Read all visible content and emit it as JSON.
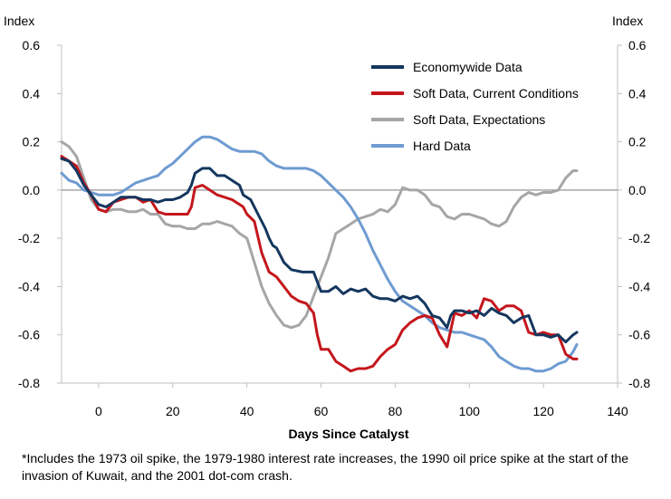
{
  "chart_data": {
    "type": "line",
    "title": "",
    "xlabel": "Days Since Catalyst",
    "ylabel_left": "Index",
    "ylabel_right": "Index",
    "xlim": [
      -10,
      140
    ],
    "ylim": [
      -0.8,
      0.6
    ],
    "x_ticks": [
      0,
      20,
      40,
      60,
      80,
      100,
      120,
      140
    ],
    "y_ticks": [
      0.6,
      0.4,
      0.2,
      0.0,
      -0.2,
      -0.4,
      -0.6,
      -0.8
    ],
    "y_tick_labels": [
      "0.6",
      "0.4",
      "0.2",
      "0.0",
      "-0.2",
      "-0.4",
      "-0.6",
      "-0.8"
    ],
    "zero_line": true,
    "grid": false,
    "legend_position": "top-right",
    "series": [
      {
        "name": "Economywide Data",
        "color": "#14375e",
        "points": [
          [
            -10,
            0.13
          ],
          [
            -8,
            0.12
          ],
          [
            -6,
            0.08
          ],
          [
            -4,
            0.02
          ],
          [
            -2,
            -0.02
          ],
          [
            0,
            -0.06
          ],
          [
            2,
            -0.07
          ],
          [
            4,
            -0.05
          ],
          [
            6,
            -0.03
          ],
          [
            8,
            -0.03
          ],
          [
            10,
            -0.03
          ],
          [
            12,
            -0.04
          ],
          [
            14,
            -0.04
          ],
          [
            16,
            -0.05
          ],
          [
            18,
            -0.04
          ],
          [
            20,
            -0.04
          ],
          [
            22,
            -0.03
          ],
          [
            24,
            -0.01
          ],
          [
            25,
            0.02
          ],
          [
            26,
            0.07
          ],
          [
            28,
            0.09
          ],
          [
            30,
            0.09
          ],
          [
            32,
            0.06
          ],
          [
            34,
            0.06
          ],
          [
            36,
            0.04
          ],
          [
            38,
            0.02
          ],
          [
            39,
            -0.02
          ],
          [
            41,
            -0.04
          ],
          [
            43,
            -0.1
          ],
          [
            45,
            -0.16
          ],
          [
            46,
            -0.2
          ],
          [
            47,
            -0.23
          ],
          [
            48,
            -0.24
          ],
          [
            50,
            -0.3
          ],
          [
            52,
            -0.33
          ],
          [
            55,
            -0.34
          ],
          [
            58,
            -0.34
          ],
          [
            59,
            -0.38
          ],
          [
            60,
            -0.42
          ],
          [
            62,
            -0.42
          ],
          [
            64,
            -0.4
          ],
          [
            66,
            -0.43
          ],
          [
            68,
            -0.41
          ],
          [
            70,
            -0.42
          ],
          [
            72,
            -0.41
          ],
          [
            74,
            -0.44
          ],
          [
            76,
            -0.45
          ],
          [
            78,
            -0.45
          ],
          [
            80,
            -0.46
          ],
          [
            82,
            -0.44
          ],
          [
            84,
            -0.45
          ],
          [
            86,
            -0.44
          ],
          [
            88,
            -0.47
          ],
          [
            90,
            -0.52
          ],
          [
            92,
            -0.53
          ],
          [
            94,
            -0.57
          ],
          [
            95,
            -0.52
          ],
          [
            96,
            -0.5
          ],
          [
            98,
            -0.5
          ],
          [
            100,
            -0.51
          ],
          [
            102,
            -0.5
          ],
          [
            104,
            -0.52
          ],
          [
            106,
            -0.49
          ],
          [
            108,
            -0.51
          ],
          [
            110,
            -0.52
          ],
          [
            112,
            -0.55
          ],
          [
            114,
            -0.53
          ],
          [
            116,
            -0.52
          ],
          [
            118,
            -0.6
          ],
          [
            120,
            -0.6
          ],
          [
            122,
            -0.61
          ],
          [
            124,
            -0.6
          ],
          [
            126,
            -0.63
          ],
          [
            128,
            -0.6
          ],
          [
            129,
            -0.59
          ]
        ]
      },
      {
        "name": "Soft Data, Current Conditions",
        "color": "#c4161c",
        "points": [
          [
            -10,
            0.14
          ],
          [
            -8,
            0.12
          ],
          [
            -6,
            0.1
          ],
          [
            -4,
            0.03
          ],
          [
            -2,
            -0.02
          ],
          [
            0,
            -0.08
          ],
          [
            2,
            -0.09
          ],
          [
            4,
            -0.05
          ],
          [
            6,
            -0.04
          ],
          [
            8,
            -0.03
          ],
          [
            10,
            -0.03
          ],
          [
            12,
            -0.05
          ],
          [
            14,
            -0.04
          ],
          [
            16,
            -0.09
          ],
          [
            18,
            -0.1
          ],
          [
            20,
            -0.1
          ],
          [
            22,
            -0.1
          ],
          [
            24,
            -0.1
          ],
          [
            25,
            -0.07
          ],
          [
            26,
            0.01
          ],
          [
            28,
            0.02
          ],
          [
            30,
            0.0
          ],
          [
            32,
            -0.02
          ],
          [
            34,
            -0.03
          ],
          [
            36,
            -0.04
          ],
          [
            38,
            -0.06
          ],
          [
            39,
            -0.07
          ],
          [
            40,
            -0.1
          ],
          [
            42,
            -0.13
          ],
          [
            44,
            -0.26
          ],
          [
            46,
            -0.34
          ],
          [
            48,
            -0.36
          ],
          [
            50,
            -0.4
          ],
          [
            52,
            -0.44
          ],
          [
            54,
            -0.46
          ],
          [
            56,
            -0.47
          ],
          [
            58,
            -0.51
          ],
          [
            59,
            -0.6
          ],
          [
            60,
            -0.66
          ],
          [
            62,
            -0.66
          ],
          [
            64,
            -0.71
          ],
          [
            66,
            -0.73
          ],
          [
            68,
            -0.75
          ],
          [
            70,
            -0.74
          ],
          [
            72,
            -0.74
          ],
          [
            74,
            -0.73
          ],
          [
            76,
            -0.69
          ],
          [
            78,
            -0.66
          ],
          [
            80,
            -0.64
          ],
          [
            82,
            -0.58
          ],
          [
            84,
            -0.55
          ],
          [
            86,
            -0.53
          ],
          [
            88,
            -0.52
          ],
          [
            90,
            -0.53
          ],
          [
            92,
            -0.6
          ],
          [
            94,
            -0.65
          ],
          [
            96,
            -0.51
          ],
          [
            98,
            -0.52
          ],
          [
            100,
            -0.5
          ],
          [
            102,
            -0.53
          ],
          [
            104,
            -0.45
          ],
          [
            106,
            -0.46
          ],
          [
            108,
            -0.5
          ],
          [
            110,
            -0.48
          ],
          [
            112,
            -0.48
          ],
          [
            114,
            -0.5
          ],
          [
            116,
            -0.59
          ],
          [
            118,
            -0.6
          ],
          [
            120,
            -0.59
          ],
          [
            122,
            -0.6
          ],
          [
            124,
            -0.6
          ],
          [
            126,
            -0.68
          ],
          [
            128,
            -0.7
          ],
          [
            129,
            -0.7
          ]
        ]
      },
      {
        "name": "Soft Data, Expectations",
        "color": "#a6a6a6",
        "points": [
          [
            -10,
            0.2
          ],
          [
            -8,
            0.18
          ],
          [
            -6,
            0.14
          ],
          [
            -4,
            0.05
          ],
          [
            -2,
            -0.04
          ],
          [
            0,
            -0.08
          ],
          [
            2,
            -0.09
          ],
          [
            4,
            -0.08
          ],
          [
            6,
            -0.08
          ],
          [
            8,
            -0.09
          ],
          [
            10,
            -0.09
          ],
          [
            12,
            -0.08
          ],
          [
            14,
            -0.1
          ],
          [
            16,
            -0.1
          ],
          [
            18,
            -0.14
          ],
          [
            20,
            -0.15
          ],
          [
            22,
            -0.15
          ],
          [
            24,
            -0.16
          ],
          [
            26,
            -0.16
          ],
          [
            28,
            -0.14
          ],
          [
            30,
            -0.14
          ],
          [
            32,
            -0.13
          ],
          [
            34,
            -0.14
          ],
          [
            36,
            -0.15
          ],
          [
            38,
            -0.18
          ],
          [
            40,
            -0.2
          ],
          [
            42,
            -0.3
          ],
          [
            44,
            -0.4
          ],
          [
            46,
            -0.47
          ],
          [
            48,
            -0.52
          ],
          [
            50,
            -0.56
          ],
          [
            52,
            -0.57
          ],
          [
            54,
            -0.56
          ],
          [
            56,
            -0.52
          ],
          [
            58,
            -0.44
          ],
          [
            60,
            -0.36
          ],
          [
            62,
            -0.28
          ],
          [
            64,
            -0.18
          ],
          [
            66,
            -0.16
          ],
          [
            68,
            -0.14
          ],
          [
            70,
            -0.12
          ],
          [
            72,
            -0.11
          ],
          [
            74,
            -0.1
          ],
          [
            76,
            -0.08
          ],
          [
            78,
            -0.09
          ],
          [
            80,
            -0.06
          ],
          [
            82,
            0.01
          ],
          [
            84,
            0.0
          ],
          [
            86,
            0.0
          ],
          [
            88,
            -0.02
          ],
          [
            90,
            -0.06
          ],
          [
            92,
            -0.07
          ],
          [
            94,
            -0.11
          ],
          [
            96,
            -0.12
          ],
          [
            98,
            -0.1
          ],
          [
            100,
            -0.1
          ],
          [
            102,
            -0.11
          ],
          [
            104,
            -0.12
          ],
          [
            106,
            -0.14
          ],
          [
            108,
            -0.15
          ],
          [
            110,
            -0.13
          ],
          [
            112,
            -0.07
          ],
          [
            114,
            -0.03
          ],
          [
            116,
            -0.01
          ],
          [
            118,
            -0.02
          ],
          [
            120,
            -0.01
          ],
          [
            122,
            -0.01
          ],
          [
            124,
            0.0
          ],
          [
            126,
            0.05
          ],
          [
            128,
            0.08
          ],
          [
            129,
            0.08
          ]
        ]
      },
      {
        "name": "Hard Data",
        "color": "#6e9bd1",
        "points": [
          [
            -10,
            0.07
          ],
          [
            -8,
            0.04
          ],
          [
            -6,
            0.03
          ],
          [
            -4,
            0.0
          ],
          [
            -2,
            -0.01
          ],
          [
            0,
            -0.02
          ],
          [
            2,
            -0.02
          ],
          [
            4,
            -0.02
          ],
          [
            6,
            -0.01
          ],
          [
            8,
            0.01
          ],
          [
            10,
            0.03
          ],
          [
            12,
            0.04
          ],
          [
            14,
            0.05
          ],
          [
            16,
            0.06
          ],
          [
            18,
            0.09
          ],
          [
            20,
            0.11
          ],
          [
            22,
            0.14
          ],
          [
            24,
            0.17
          ],
          [
            26,
            0.2
          ],
          [
            28,
            0.22
          ],
          [
            30,
            0.22
          ],
          [
            32,
            0.21
          ],
          [
            34,
            0.19
          ],
          [
            36,
            0.17
          ],
          [
            38,
            0.16
          ],
          [
            40,
            0.16
          ],
          [
            42,
            0.16
          ],
          [
            44,
            0.15
          ],
          [
            46,
            0.12
          ],
          [
            48,
            0.1
          ],
          [
            50,
            0.09
          ],
          [
            52,
            0.09
          ],
          [
            54,
            0.09
          ],
          [
            56,
            0.09
          ],
          [
            58,
            0.08
          ],
          [
            60,
            0.06
          ],
          [
            62,
            0.03
          ],
          [
            64,
            0.0
          ],
          [
            66,
            -0.03
          ],
          [
            68,
            -0.07
          ],
          [
            70,
            -0.12
          ],
          [
            72,
            -0.18
          ],
          [
            74,
            -0.25
          ],
          [
            76,
            -0.31
          ],
          [
            78,
            -0.37
          ],
          [
            80,
            -0.42
          ],
          [
            82,
            -0.46
          ],
          [
            84,
            -0.48
          ],
          [
            86,
            -0.5
          ],
          [
            88,
            -0.52
          ],
          [
            90,
            -0.55
          ],
          [
            92,
            -0.57
          ],
          [
            94,
            -0.58
          ],
          [
            96,
            -0.59
          ],
          [
            98,
            -0.59
          ],
          [
            100,
            -0.6
          ],
          [
            102,
            -0.61
          ],
          [
            104,
            -0.62
          ],
          [
            106,
            -0.65
          ],
          [
            108,
            -0.69
          ],
          [
            110,
            -0.71
          ],
          [
            112,
            -0.73
          ],
          [
            114,
            -0.74
          ],
          [
            116,
            -0.74
          ],
          [
            118,
            -0.75
          ],
          [
            120,
            -0.75
          ],
          [
            122,
            -0.74
          ],
          [
            124,
            -0.72
          ],
          [
            126,
            -0.71
          ],
          [
            128,
            -0.67
          ],
          [
            129,
            -0.64
          ]
        ]
      }
    ]
  },
  "footnote": "*Includes the 1973 oil spike, the 1979-1980 interest rate increases, the 1990 oil price spike at the start of the invasion of Kuwait, and the 2001 dot-com crash."
}
